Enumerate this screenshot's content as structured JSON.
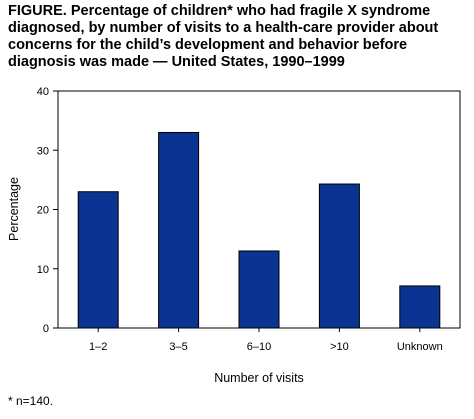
{
  "figure": {
    "title": "FIGURE. Percentage of children* who had fragile X syndrome diagnosed, by number of visits to a health-care provider about concerns for the child’s development and behavior before diagnosis was made — United States, 1990–1999",
    "footnote": "* n=140."
  },
  "chart_data": {
    "type": "bar",
    "categories": [
      "1–2",
      "3–5",
      "6–10",
      ">10",
      "Unknown"
    ],
    "values": [
      23,
      33,
      13,
      24.3,
      7.1
    ],
    "xlabel": "Number of visits",
    "ylabel": "Percentage",
    "ylim": [
      0,
      40
    ],
    "yticks": [
      0,
      10,
      20,
      30,
      40
    ],
    "grid": false,
    "bar_color": "#0b3391",
    "bar_edge_color": "#000000"
  }
}
